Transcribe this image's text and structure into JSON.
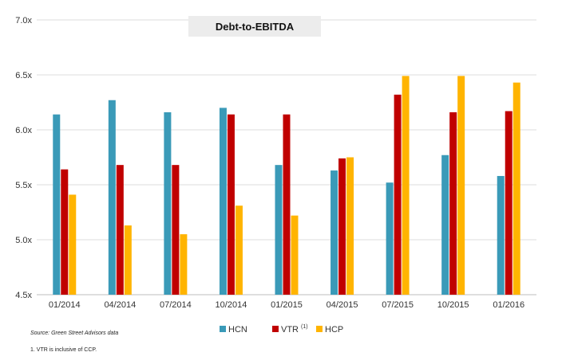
{
  "chart_data": {
    "type": "bar",
    "title": "Debt-to-EBITDA",
    "xlabel": "",
    "ylabel": "",
    "categories": [
      "01/2014",
      "04/2014",
      "07/2014",
      "10/2014",
      "01/2015",
      "04/2015",
      "07/2015",
      "10/2015",
      "01/2016"
    ],
    "series": [
      {
        "name": "HCN",
        "color": "#3a9ab8",
        "values": [
          6.14,
          6.27,
          6.16,
          6.2,
          5.68,
          5.63,
          5.52,
          5.77,
          5.58
        ]
      },
      {
        "name": "VTR",
        "color": "#c00000",
        "values": [
          5.64,
          5.68,
          5.68,
          6.14,
          6.14,
          5.74,
          6.32,
          6.16,
          6.17
        ]
      },
      {
        "name": "HCP",
        "color": "#ffb400",
        "values": [
          5.41,
          5.13,
          5.05,
          5.31,
          5.22,
          5.75,
          6.49,
          6.49,
          6.43
        ]
      }
    ],
    "yticks": [
      "4.5x",
      "5.0x",
      "5.5x",
      "6.0x",
      "6.5x",
      "7.0x"
    ],
    "ytick_values": [
      4.5,
      5.0,
      5.5,
      6.0,
      6.5,
      7.0
    ],
    "ylim": [
      4.5,
      7.0
    ],
    "grid": true,
    "legend_position": "bottom",
    "legend_superscripts": {
      "VTR": "(1)"
    }
  },
  "source_note": "Source: Green Street Advisors data",
  "footnote": "1. VTR is inclusive of CCP."
}
